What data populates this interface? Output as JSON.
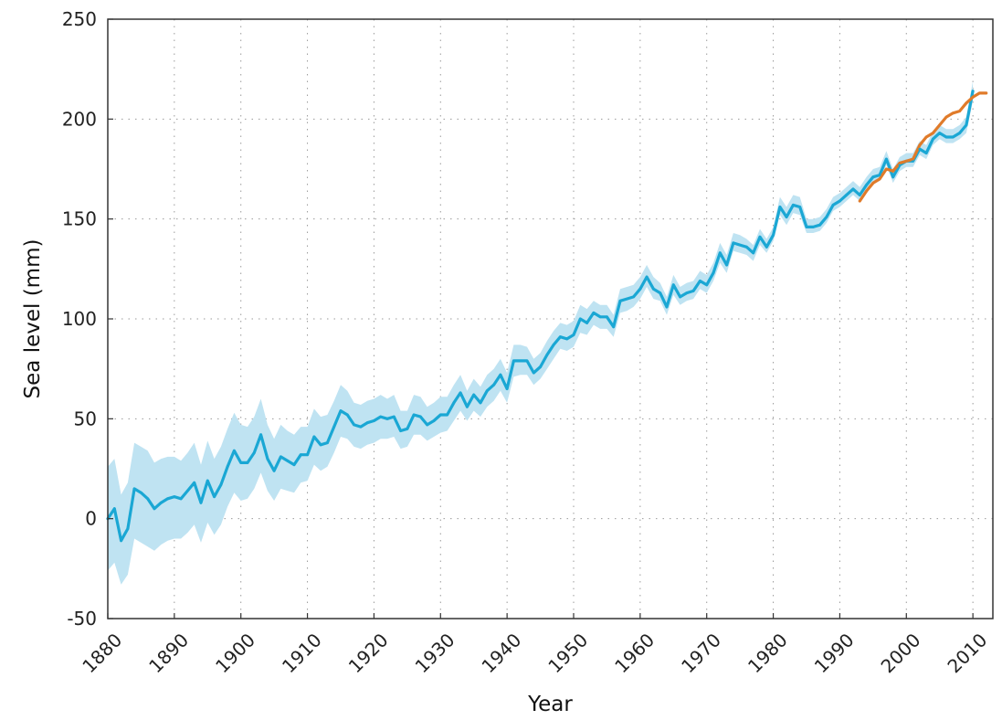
{
  "chart_data": {
    "type": "line",
    "xlabel": "Year",
    "ylabel": "Sea level (mm)",
    "xlim": [
      1880,
      2013
    ],
    "ylim": [
      -50,
      250
    ],
    "x_ticks": [
      1880,
      1890,
      1900,
      1910,
      1920,
      1930,
      1940,
      1950,
      1960,
      1970,
      1980,
      1990,
      2000,
      2010
    ],
    "y_ticks": [
      -50,
      0,
      50,
      100,
      150,
      200,
      250
    ],
    "x_tick_labels": [
      "1880",
      "1890",
      "1900",
      "1910",
      "1920",
      "1930",
      "1940",
      "1950",
      "1960",
      "1970",
      "1980",
      "1990",
      "2000",
      "2010"
    ],
    "y_tick_labels": [
      "-50",
      "0",
      "50",
      "100",
      "150",
      "200",
      "250"
    ],
    "grid": "dotted",
    "colors": {
      "tide_gauge": "#1aa7d4",
      "uncertainty": "#bfe3f2",
      "satellite": "#e07b2a"
    },
    "series": [
      {
        "style": "line-with-uncertainty-band",
        "x": [
          1880,
          1881,
          1882,
          1883,
          1884,
          1885,
          1886,
          1887,
          1888,
          1889,
          1890,
          1891,
          1892,
          1893,
          1894,
          1895,
          1896,
          1897,
          1898,
          1899,
          1900,
          1901,
          1902,
          1903,
          1904,
          1905,
          1906,
          1907,
          1908,
          1909,
          1910,
          1911,
          1912,
          1913,
          1914,
          1915,
          1916,
          1917,
          1918,
          1919,
          1920,
          1921,
          1922,
          1923,
          1924,
          1925,
          1926,
          1927,
          1928,
          1929,
          1930,
          1931,
          1932,
          1933,
          1934,
          1935,
          1936,
          1937,
          1938,
          1939,
          1940,
          1941,
          1942,
          1943,
          1944,
          1945,
          1946,
          1947,
          1948,
          1949,
          1950,
          1951,
          1952,
          1953,
          1954,
          1955,
          1956,
          1957,
          1958,
          1959,
          1960,
          1961,
          1962,
          1963,
          1964,
          1965,
          1966,
          1967,
          1968,
          1969,
          1970,
          1971,
          1972,
          1973,
          1974,
          1975,
          1976,
          1977,
          1978,
          1979,
          1980,
          1981,
          1982,
          1983,
          1984,
          1985,
          1986,
          1987,
          1988,
          1989,
          1990,
          1991,
          1992,
          1993,
          1994,
          1995,
          1996,
          1997,
          1998,
          1999,
          2000,
          2001,
          2002,
          2003,
          2004,
          2005,
          2006,
          2007,
          2008,
          2009,
          2010
        ],
        "values": [
          0,
          5,
          -11,
          -5,
          15,
          13,
          10,
          5,
          8,
          10,
          11,
          10,
          14,
          18,
          8,
          19,
          11,
          17,
          26,
          34,
          28,
          28,
          33,
          42,
          30,
          24,
          31,
          29,
          27,
          32,
          32,
          41,
          37,
          38,
          46,
          54,
          52,
          47,
          46,
          48,
          49,
          51,
          50,
          51,
          44,
          45,
          52,
          51,
          47,
          49,
          52,
          52,
          58,
          63,
          56,
          62,
          58,
          64,
          67,
          72,
          65,
          79,
          79,
          79,
          73,
          76,
          82,
          87,
          91,
          90,
          92,
          100,
          98,
          103,
          101,
          101,
          96,
          109,
          110,
          111,
          115,
          121,
          115,
          113,
          106,
          117,
          111,
          113,
          114,
          119,
          117,
          123,
          133,
          127,
          138,
          137,
          136,
          133,
          141,
          136,
          142,
          156,
          151,
          157,
          156,
          146,
          146,
          147,
          151,
          157,
          159,
          162,
          165,
          162,
          167,
          171,
          172,
          180,
          171,
          177,
          179,
          179,
          185,
          183,
          190,
          193,
          191,
          191,
          193,
          197,
          214
        ],
        "lower": [
          -26,
          -22,
          -33,
          -28,
          -10,
          -12,
          -14,
          -16,
          -13,
          -11,
          -10,
          -10,
          -7,
          -3,
          -12,
          -2,
          -8,
          -3,
          6,
          13,
          9,
          10,
          15,
          23,
          14,
          9,
          15,
          14,
          13,
          18,
          19,
          27,
          24,
          26,
          33,
          41,
          40,
          36,
          35,
          37,
          38,
          40,
          40,
          41,
          35,
          36,
          42,
          42,
          39,
          41,
          43,
          44,
          49,
          54,
          49,
          54,
          51,
          56,
          59,
          64,
          58,
          71,
          72,
          72,
          67,
          70,
          75,
          80,
          85,
          84,
          86,
          93,
          92,
          97,
          95,
          95,
          91,
          103,
          104,
          106,
          110,
          116,
          110,
          109,
          102,
          112,
          107,
          109,
          110,
          115,
          113,
          119,
          128,
          123,
          134,
          133,
          132,
          129,
          137,
          133,
          139,
          152,
          147,
          153,
          152,
          143,
          143,
          144,
          148,
          154,
          156,
          159,
          162,
          159,
          164,
          168,
          169,
          177,
          168,
          174,
          176,
          176,
          182,
          180,
          187,
          190,
          188,
          188,
          190,
          193,
          209
        ],
        "upper": [
          26,
          30,
          12,
          18,
          38,
          36,
          34,
          28,
          30,
          31,
          31,
          29,
          33,
          38,
          27,
          39,
          30,
          36,
          45,
          53,
          47,
          46,
          51,
          60,
          47,
          40,
          47,
          44,
          42,
          46,
          46,
          55,
          51,
          52,
          59,
          67,
          64,
          58,
          57,
          59,
          60,
          62,
          60,
          62,
          54,
          54,
          62,
          61,
          56,
          58,
          61,
          61,
          67,
          72,
          64,
          70,
          66,
          72,
          75,
          80,
          73,
          87,
          87,
          86,
          80,
          83,
          89,
          94,
          98,
          97,
          99,
          107,
          105,
          109,
          107,
          107,
          102,
          115,
          116,
          117,
          121,
          127,
          121,
          118,
          111,
          122,
          116,
          118,
          119,
          124,
          122,
          128,
          138,
          132,
          143,
          142,
          140,
          137,
          145,
          140,
          146,
          161,
          156,
          162,
          161,
          150,
          150,
          151,
          155,
          161,
          163,
          166,
          169,
          166,
          171,
          175,
          176,
          184,
          175,
          181,
          183,
          183,
          189,
          187,
          194,
          197,
          195,
          195,
          197,
          201,
          219
        ]
      },
      {
        "style": "line",
        "x": [
          1993,
          1994,
          1995,
          1996,
          1997,
          1998,
          1999,
          2000,
          2001,
          2002,
          2003,
          2004,
          2005,
          2006,
          2007,
          2008,
          2009,
          2010,
          2011,
          2012
        ],
        "values": [
          159,
          164,
          168,
          170,
          175,
          174,
          178,
          179,
          180,
          187,
          191,
          193,
          197,
          201,
          203,
          204,
          208,
          211,
          213,
          213
        ]
      }
    ]
  }
}
